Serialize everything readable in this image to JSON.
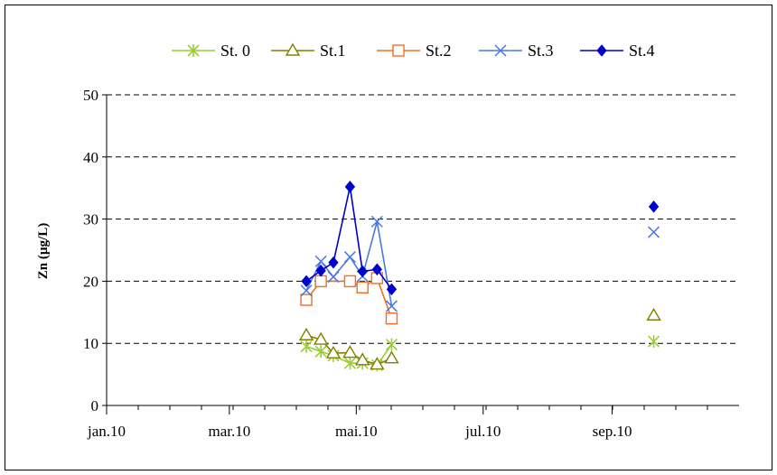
{
  "chart_data": {
    "type": "line",
    "ylabel": "Zn (µg/L)",
    "xlabel": "",
    "title": "",
    "ylim": [
      0,
      50
    ],
    "yticks": [
      0,
      10,
      20,
      30,
      40,
      50
    ],
    "xlim": [
      "2010-01-01",
      "2010-11-01"
    ],
    "xticks": [
      {
        "date": "2010-01-01",
        "label": "jan.10"
      },
      {
        "date": "2010-03-01",
        "label": "mar.10"
      },
      {
        "date": "2010-05-01",
        "label": "mai.10"
      },
      {
        "date": "2010-07-01",
        "label": "jul.10"
      },
      {
        "date": "2010-09-01",
        "label": "sep.10"
      }
    ],
    "grid": "horizontal-dashed",
    "legend_position": "top",
    "series": [
      {
        "name": "St. 0",
        "color": "#9acd32",
        "marker": "asterisk",
        "line": true,
        "points": [
          [
            "2010-04-07",
            9.5
          ],
          [
            "2010-04-14",
            8.7
          ],
          [
            "2010-04-20",
            8.0
          ],
          [
            "2010-04-28",
            6.8
          ],
          [
            "2010-05-04",
            6.8
          ],
          [
            "2010-05-11",
            6.5
          ],
          [
            "2010-05-18",
            9.8
          ],
          [
            "2010-09-21",
            10.3
          ]
        ]
      },
      {
        "name": "St.1",
        "color": "#808000",
        "marker": "triangle",
        "line": true,
        "points": [
          [
            "2010-04-07",
            11.3
          ],
          [
            "2010-04-14",
            10.6
          ],
          [
            "2010-04-20",
            8.4
          ],
          [
            "2010-04-28",
            8.5
          ],
          [
            "2010-05-04",
            7.3
          ],
          [
            "2010-05-11",
            6.6
          ],
          [
            "2010-05-18",
            7.6
          ],
          [
            "2010-09-21",
            14.5
          ]
        ]
      },
      {
        "name": "St.2",
        "color": "#f07020",
        "marker": "square",
        "line": true,
        "points": [
          [
            "2010-04-07",
            17.0
          ],
          [
            "2010-04-14",
            20.0
          ],
          [
            "2010-04-28",
            20.0
          ],
          [
            "2010-05-04",
            19.0
          ],
          [
            "2010-05-11",
            20.5
          ],
          [
            "2010-05-18",
            14.0
          ]
        ]
      },
      {
        "name": "St.3",
        "color": "#4a78e0",
        "marker": "x",
        "line": true,
        "points": [
          [
            "2010-04-07",
            18.5
          ],
          [
            "2010-04-14",
            23.2
          ],
          [
            "2010-04-20",
            20.7
          ],
          [
            "2010-04-28",
            23.9
          ],
          [
            "2010-05-04",
            20.8
          ],
          [
            "2010-05-11",
            29.6
          ],
          [
            "2010-05-18",
            16.0
          ],
          [
            "2010-09-21",
            27.9
          ]
        ]
      },
      {
        "name": "St.4",
        "color": "#0000cd",
        "marker": "diamond",
        "line": true,
        "points": [
          [
            "2010-04-07",
            20.0
          ],
          [
            "2010-04-14",
            21.7
          ],
          [
            "2010-04-20",
            23.0
          ],
          [
            "2010-04-28",
            35.2
          ],
          [
            "2010-05-04",
            21.6
          ],
          [
            "2010-05-11",
            21.9
          ],
          [
            "2010-05-18",
            18.7
          ],
          [
            "2010-09-21",
            32.0
          ]
        ]
      }
    ]
  }
}
